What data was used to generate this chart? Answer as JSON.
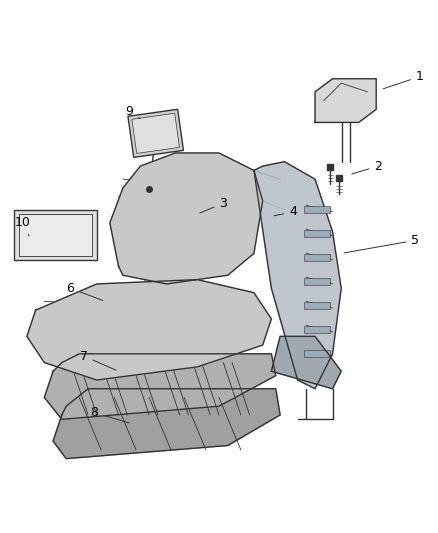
{
  "background_color": "#ffffff",
  "fig_width": 4.38,
  "fig_height": 5.33,
  "dpi": 100,
  "line_color": "#333333",
  "label_color": "#000000",
  "label_fontsize": 9,
  "fill_light": "#d8d8d8",
  "fill_medium": "#c0c0c0",
  "fill_dark": "#a8a8a8"
}
